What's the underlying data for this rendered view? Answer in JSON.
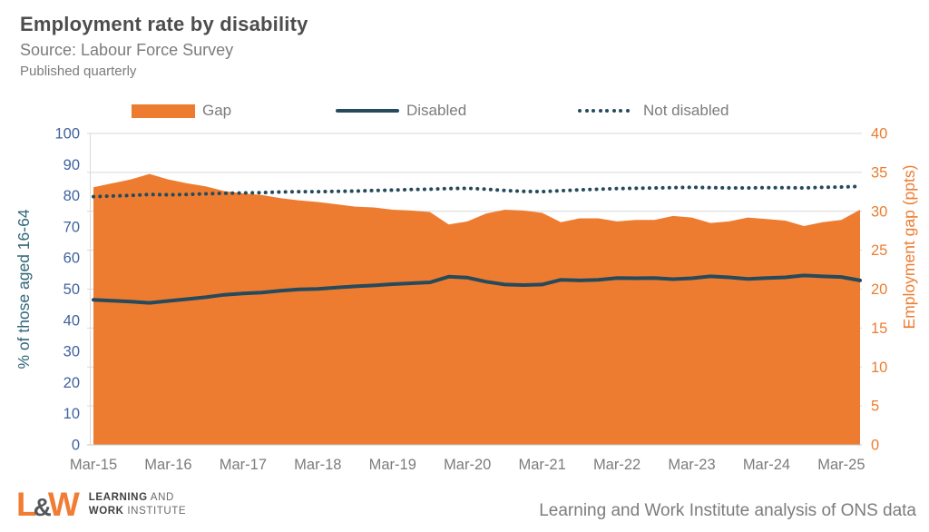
{
  "header": {
    "title": "Employment rate by disability",
    "source_line": "Source: Labour Force Survey",
    "published_line": "Published quarterly"
  },
  "footer": {
    "logo": {
      "mark_l": "L",
      "mark_amp": "&",
      "mark_w": "W",
      "line1_bold": "LEARNING",
      "line1_rest": " AND",
      "line2_bold": "WORK",
      "line2_rest": " INSTITUTE"
    },
    "attribution": "Learning and Work Institute analysis of ONS data"
  },
  "colors": {
    "gap_orange": "#ed7c30",
    "line_dark": "#264a5b",
    "left_tick_blue": "#41629e",
    "left_axis_title_teal": "#316779",
    "right_axis_orange": "#ed7d31",
    "gridline_gray": "#d9d9d9",
    "x_label_gray": "#7c7c7c"
  },
  "chart_data": {
    "type": "area",
    "title": "Employment rate by disability",
    "x": [
      "Mar-15",
      "Jun-15",
      "Sep-15",
      "Dec-15",
      "Mar-16",
      "Jun-16",
      "Sep-16",
      "Dec-16",
      "Mar-17",
      "Jun-17",
      "Sep-17",
      "Dec-17",
      "Mar-18",
      "Jun-18",
      "Sep-18",
      "Dec-18",
      "Mar-19",
      "Jun-19",
      "Sep-19",
      "Dec-19",
      "Mar-20",
      "Jun-20",
      "Sep-20",
      "Dec-20",
      "Mar-21",
      "Jun-21",
      "Sep-21",
      "Dec-21",
      "Mar-22",
      "Jun-22",
      "Sep-22",
      "Dec-22",
      "Mar-23",
      "Jun-23",
      "Sep-23",
      "Dec-23",
      "Mar-24",
      "Jun-24",
      "Sep-24",
      "Dec-24",
      "Mar-25",
      "Jun-25"
    ],
    "x_tick_labels": [
      "Mar-15",
      "Mar-16",
      "Mar-17",
      "Mar-18",
      "Mar-19",
      "Mar-20",
      "Mar-21",
      "Mar-22",
      "Mar-23",
      "Mar-24",
      "Mar-25"
    ],
    "x_tick_every": 4,
    "series": [
      {
        "name": "Gap",
        "type": "area",
        "axis": "right",
        "color": "#ed7c30",
        "values": [
          33.1,
          33.6,
          34.1,
          34.8,
          34.1,
          33.6,
          33.2,
          32.6,
          32.3,
          32.1,
          31.7,
          31.4,
          31.2,
          30.9,
          30.6,
          30.5,
          30.2,
          30.1,
          29.9,
          28.3,
          28.7,
          29.7,
          30.2,
          30.1,
          29.8,
          28.6,
          29.1,
          29.1,
          28.7,
          28.9,
          28.9,
          29.4,
          29.2,
          28.5,
          28.7,
          29.2,
          29.0,
          28.8,
          28.1,
          28.6,
          28.9,
          30.2
        ]
      },
      {
        "name": "Disabled",
        "type": "line",
        "style": "solid",
        "axis": "left",
        "color": "#264a5b",
        "values": [
          46.6,
          46.3,
          46.0,
          45.6,
          46.2,
          46.8,
          47.4,
          48.2,
          48.6,
          48.9,
          49.5,
          49.9,
          50.1,
          50.5,
          50.9,
          51.2,
          51.6,
          51.9,
          52.2,
          54.0,
          53.7,
          52.4,
          51.5,
          51.3,
          51.5,
          53.0,
          52.8,
          53.0,
          53.6,
          53.5,
          53.6,
          53.2,
          53.5,
          54.1,
          53.8,
          53.3,
          53.6,
          53.8,
          54.4,
          54.1,
          53.9,
          52.8
        ]
      },
      {
        "name": "Not disabled",
        "type": "line",
        "style": "dotted",
        "axis": "left",
        "color": "#264a5b",
        "values": [
          79.7,
          79.9,
          80.1,
          80.4,
          80.3,
          80.4,
          80.6,
          80.8,
          80.9,
          81.0,
          81.2,
          81.3,
          81.3,
          81.4,
          81.5,
          81.7,
          81.8,
          82.0,
          82.1,
          82.3,
          82.4,
          82.1,
          81.7,
          81.4,
          81.3,
          81.6,
          81.9,
          82.1,
          82.3,
          82.4,
          82.5,
          82.6,
          82.7,
          82.6,
          82.5,
          82.5,
          82.6,
          82.6,
          82.5,
          82.7,
          82.8,
          83.0
        ]
      }
    ],
    "left_axis": {
      "title": "% of those aged 16-64",
      "min": 0,
      "max": 100,
      "step": 10
    },
    "right_axis": {
      "title": "Employment gap (ppts)",
      "min": 0,
      "max": 40,
      "step": 5
    },
    "grid": "horizontal, every 5 ppts (right axis)",
    "legend_position": "top"
  }
}
